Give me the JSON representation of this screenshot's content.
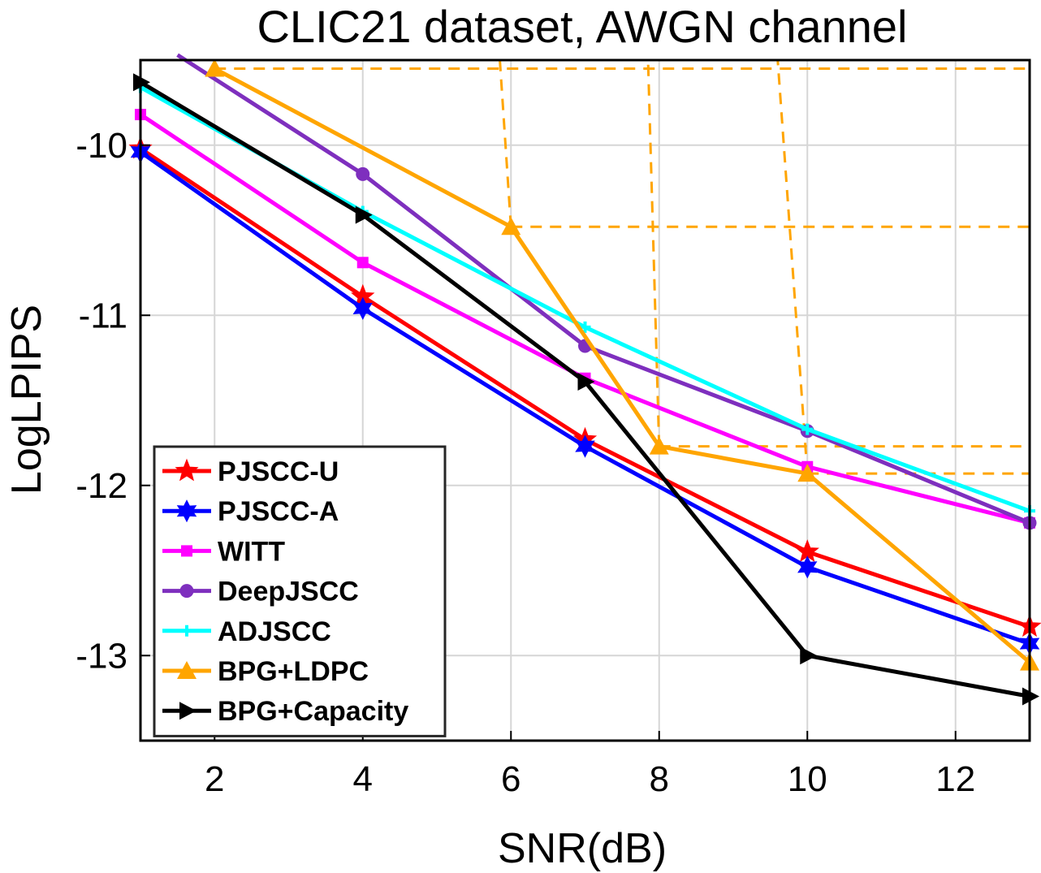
{
  "chart_data": {
    "type": "line",
    "title": "CLIC21 dataset, AWGN channel",
    "xlabel": "SNR(dB)",
    "ylabel": "LogLPIPS",
    "xlim": [
      1,
      13
    ],
    "ylim": [
      -13.5,
      -9.5
    ],
    "xticks": [
      2,
      4,
      6,
      8,
      10,
      12
    ],
    "yticks": [
      -10,
      -11,
      -12,
      -13
    ],
    "xtick_labels": [
      "2",
      "4",
      "6",
      "8",
      "10",
      "12"
    ],
    "ytick_labels": [
      "-10",
      "-11",
      "-12",
      "-13"
    ],
    "grid": true,
    "legend_position": "bottom-left",
    "series": [
      {
        "name": "PJSCC-U",
        "color": "#ff0000",
        "marker": "star",
        "x": [
          1,
          4,
          7,
          10,
          13
        ],
        "y": [
          -10.02,
          -10.89,
          -11.73,
          -12.39,
          -12.83
        ]
      },
      {
        "name": "PJSCC-A",
        "color": "#0000ff",
        "marker": "hexagram",
        "x": [
          1,
          4,
          7,
          10,
          13
        ],
        "y": [
          -10.04,
          -10.96,
          -11.77,
          -12.48,
          -12.93
        ]
      },
      {
        "name": "WITT",
        "color": "#ff00ff",
        "marker": "square",
        "x": [
          1,
          4,
          7,
          10,
          13
        ],
        "y": [
          -9.82,
          -10.69,
          -11.37,
          -11.89,
          -12.22
        ]
      },
      {
        "name": "DeepJSCC",
        "color": "#7e2fbe",
        "marker": "circle",
        "x": [
          1.5,
          4,
          7,
          10,
          13
        ],
        "y": [
          -9.47,
          -10.17,
          -11.18,
          -11.68,
          -12.22
        ]
      },
      {
        "name": "ADJSCC",
        "color": "#00ffff",
        "marker": "plus",
        "x": [
          1,
          4,
          7,
          10,
          13
        ],
        "y": [
          -9.66,
          -10.39,
          -11.07,
          -11.67,
          -12.15
        ]
      },
      {
        "name": "BPG+LDPC",
        "color": "#ffa500",
        "marker": "triangle-up",
        "x": [
          2,
          6,
          8,
          10,
          13
        ],
        "y": [
          -9.55,
          -10.48,
          -11.77,
          -11.93,
          -13.04
        ]
      },
      {
        "name": "BPG+Capacity",
        "color": "#000000",
        "marker": "triangle-right",
        "x": [
          1,
          4,
          7,
          10,
          13
        ],
        "y": [
          -9.63,
          -10.41,
          -11.39,
          -13.0,
          -13.24
        ]
      }
    ],
    "reference_lines": {
      "color": "#ffa500",
      "style": "dashed",
      "horizontal_y": [
        -9.55,
        -10.48,
        -11.77,
        -11.93
      ],
      "slanted": [
        {
          "x": [
            6.0,
            5.85
          ],
          "y": [
            -10.48,
            -9.5
          ]
        },
        {
          "x": [
            8.0,
            7.85
          ],
          "y": [
            -11.77,
            -9.5
          ]
        },
        {
          "x": [
            10.0,
            9.6
          ],
          "y": [
            -11.93,
            -9.5
          ]
        }
      ]
    }
  }
}
